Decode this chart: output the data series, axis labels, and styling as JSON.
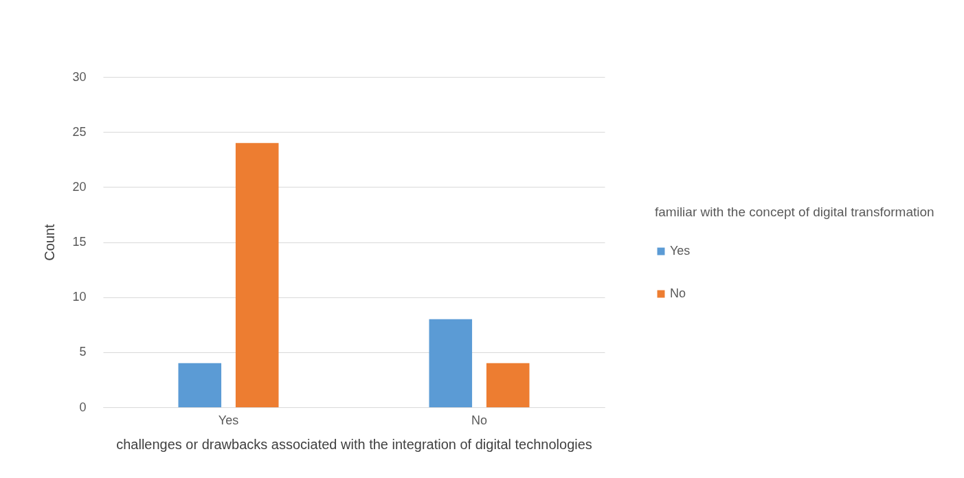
{
  "chart_data": {
    "type": "bar",
    "xlabel": "challenges or drawbacks associated with the integration of digital technologies",
    "ylabel": "Count",
    "legend_title": "familiar with the concept of digital transformation",
    "categories": [
      "Yes",
      "No"
    ],
    "series": [
      {
        "name": "Yes",
        "color": "#5b9bd5",
        "values": [
          4,
          8
        ]
      },
      {
        "name": "No",
        "color": "#ed7d31",
        "values": [
          24,
          4
        ]
      }
    ],
    "ylim": [
      0,
      30
    ],
    "yticks": [
      0,
      5,
      10,
      15,
      20,
      25,
      30
    ],
    "grid": "y",
    "legend": "right"
  }
}
